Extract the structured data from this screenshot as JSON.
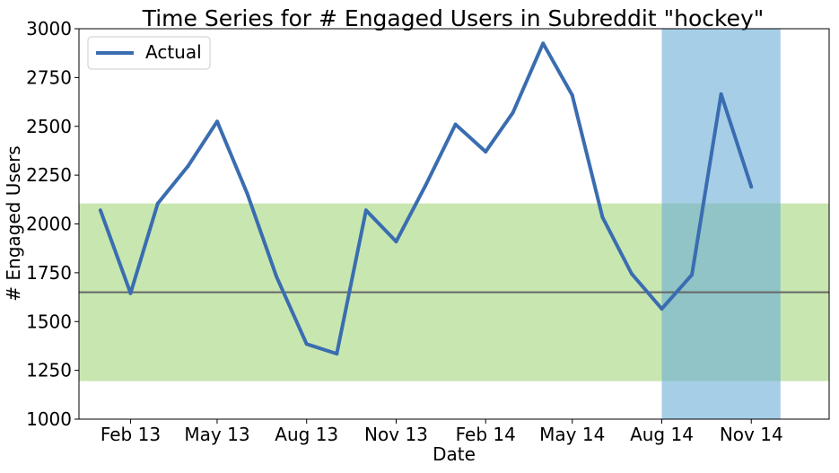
{
  "chart_data": {
    "type": "line",
    "title": "Time Series for # Engaged Users in Subreddit \"hockey\"",
    "xlabel": "Date",
    "ylabel": "# Engaged Users",
    "x_ticks": [
      "Feb 13",
      "May 13",
      "Aug 13",
      "Nov 13",
      "Feb 14",
      "May 14",
      "Aug 14",
      "Nov 14"
    ],
    "x_tick_dates": [
      "2013-02",
      "2013-05",
      "2013-08",
      "2013-11",
      "2014-02",
      "2014-05",
      "2014-08",
      "2014-11"
    ],
    "y_ticks": [
      1000,
      1250,
      1500,
      1750,
      2000,
      2250,
      2500,
      2750,
      3000
    ],
    "ylim": [
      1000,
      3000
    ],
    "xlim": [
      "2012-12-10",
      "2015-01-20"
    ],
    "grid": false,
    "legend_position": "top-left",
    "series": [
      {
        "name": "Actual",
        "color": "#3a6db0",
        "x": [
          "2013-01",
          "2013-02",
          "2013-03",
          "2013-04",
          "2013-05",
          "2013-06",
          "2013-07",
          "2013-08",
          "2013-09",
          "2013-10",
          "2013-11",
          "2013-12",
          "2014-01",
          "2014-02",
          "2014-03",
          "2014-04",
          "2014-05",
          "2014-06",
          "2014-07",
          "2014-08",
          "2014-09",
          "2014-10",
          "2014-11"
        ],
        "values": [
          2070,
          1645,
          2105,
          2295,
          2525,
          2155,
          1730,
          1385,
          1335,
          2070,
          1910,
          2195,
          2510,
          2370,
          2570,
          2925,
          2660,
          2035,
          1745,
          1565,
          1740,
          2665,
          2190
        ]
      }
    ],
    "horizontal_line": {
      "y": 1650,
      "color": "#666666"
    },
    "horizontal_band": {
      "y_from": 1195,
      "y_to": 2105,
      "color": "#a6d67f"
    },
    "vertical_band": {
      "x_from": "2014-08",
      "x_to": "2014-12",
      "color": "#6baed6"
    }
  }
}
